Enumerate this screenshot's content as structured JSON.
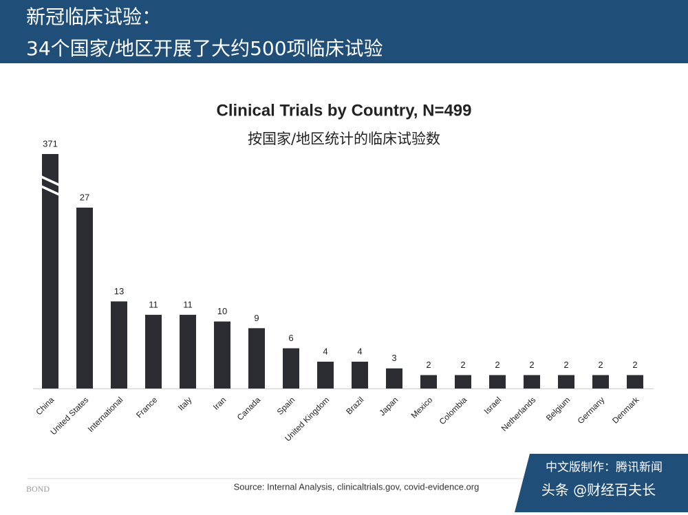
{
  "header": {
    "line1": "新冠临床试验：",
    "line2": "34个国家/地区开展了大约500项临床试验"
  },
  "chart_data": {
    "type": "bar",
    "title": "Clinical Trials by Country, N=499",
    "subtitle": "按国家/地区统计的临床试验数",
    "categories": [
      "China",
      "United States",
      "International",
      "France",
      "Italy",
      "Iran",
      "Canada",
      "Spain",
      "United Kingdom",
      "Brazil",
      "Japan",
      "Mexico",
      "Colombia",
      "Israel",
      "Netherlands",
      "Belgium",
      "Germany",
      "Denmark"
    ],
    "values": [
      371,
      27,
      13,
      11,
      11,
      10,
      9,
      6,
      4,
      4,
      3,
      2,
      2,
      2,
      2,
      2,
      2,
      2
    ],
    "color": "#2b2d33",
    "ylim": [
      0,
      35
    ],
    "axis_break": [
      31,
      367
    ],
    "source": "Source: Internal Analysis, clinicaltrials.gov, covid-evidence.org"
  },
  "footer": {
    "brand": "BOND",
    "badge": "中文版制作：腾讯新闻",
    "credit": "头条 @财经百夫长"
  }
}
